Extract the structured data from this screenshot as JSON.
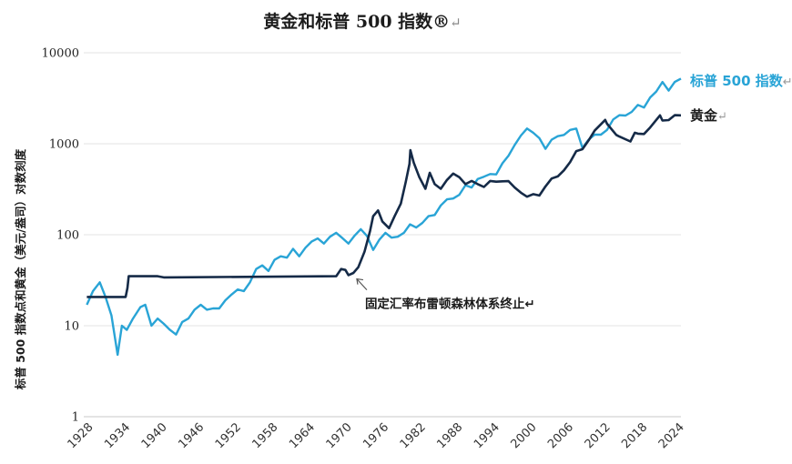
{
  "chart_data": {
    "type": "line",
    "title": "黄金和标普 500 指数®",
    "ylabel": "标普 500 指数点和黄金（美元/盎司）对数刻度",
    "y_scale": "log",
    "ylim": [
      1,
      10000
    ],
    "xlim": [
      1927,
      2024
    ],
    "y_ticks": [
      {
        "value": 1,
        "label": "1"
      },
      {
        "value": 10,
        "label": "10"
      },
      {
        "value": 100,
        "label": "100"
      },
      {
        "value": 1000,
        "label": "1000"
      },
      {
        "value": 10000,
        "label": "10000"
      }
    ],
    "x_ticks": [
      {
        "value": 1928,
        "label": "1928"
      },
      {
        "value": 1934,
        "label": "1934"
      },
      {
        "value": 1940,
        "label": "1940"
      },
      {
        "value": 1946,
        "label": "1946"
      },
      {
        "value": 1952,
        "label": "1952"
      },
      {
        "value": 1958,
        "label": "1958"
      },
      {
        "value": 1964,
        "label": "1964"
      },
      {
        "value": 1970,
        "label": "1970"
      },
      {
        "value": 1976,
        "label": "1976"
      },
      {
        "value": 1982,
        "label": "1982"
      },
      {
        "value": 1988,
        "label": "1988"
      },
      {
        "value": 1994,
        "label": "1994"
      },
      {
        "value": 2000,
        "label": "2000"
      },
      {
        "value": 2006,
        "label": "2006"
      },
      {
        "value": 2012,
        "label": "2012"
      },
      {
        "value": 2018,
        "label": "2018"
      },
      {
        "value": 2024,
        "label": "2024"
      }
    ],
    "grid": true,
    "series": [
      {
        "name": "标普 500 指数",
        "color": "#29a4d6",
        "points": [
          [
            1927.5,
            17
          ],
          [
            1928.5,
            24
          ],
          [
            1929.6,
            30
          ],
          [
            1930.5,
            21
          ],
          [
            1931.5,
            13
          ],
          [
            1932.5,
            4.8
          ],
          [
            1933.2,
            10
          ],
          [
            1934,
            9
          ],
          [
            1935,
            12
          ],
          [
            1936.2,
            16
          ],
          [
            1937,
            17
          ],
          [
            1938,
            10
          ],
          [
            1939,
            12
          ],
          [
            1940,
            10.5
          ],
          [
            1941,
            9
          ],
          [
            1942,
            8
          ],
          [
            1943,
            11
          ],
          [
            1944,
            12
          ],
          [
            1945,
            15
          ],
          [
            1946,
            17
          ],
          [
            1947,
            15
          ],
          [
            1948,
            15.5
          ],
          [
            1949,
            15.5
          ],
          [
            1950,
            19
          ],
          [
            1951,
            22
          ],
          [
            1952,
            25
          ],
          [
            1953,
            24
          ],
          [
            1954,
            30
          ],
          [
            1955,
            42
          ],
          [
            1956,
            46
          ],
          [
            1957,
            40
          ],
          [
            1958,
            53
          ],
          [
            1959,
            58
          ],
          [
            1960,
            56
          ],
          [
            1961,
            70
          ],
          [
            1962,
            58
          ],
          [
            1963,
            72
          ],
          [
            1964,
            84
          ],
          [
            1965,
            91
          ],
          [
            1966,
            80
          ],
          [
            1967,
            95
          ],
          [
            1968,
            105
          ],
          [
            1969,
            92
          ],
          [
            1970,
            80
          ],
          [
            1971,
            98
          ],
          [
            1972,
            115
          ],
          [
            1973,
            97
          ],
          [
            1974,
            68
          ],
          [
            1975,
            88
          ],
          [
            1976,
            105
          ],
          [
            1977,
            93
          ],
          [
            1978,
            95
          ],
          [
            1979,
            105
          ],
          [
            1980,
            130
          ],
          [
            1981,
            120
          ],
          [
            1982,
            135
          ],
          [
            1983,
            160
          ],
          [
            1984,
            165
          ],
          [
            1985,
            210
          ],
          [
            1986,
            245
          ],
          [
            1987,
            250
          ],
          [
            1988,
            275
          ],
          [
            1989,
            350
          ],
          [
            1990,
            330
          ],
          [
            1991,
            410
          ],
          [
            1992,
            435
          ],
          [
            1993,
            465
          ],
          [
            1994,
            460
          ],
          [
            1995,
            610
          ],
          [
            1996,
            740
          ],
          [
            1997,
            970
          ],
          [
            1998,
            1230
          ],
          [
            1999,
            1470
          ],
          [
            2000,
            1320
          ],
          [
            2001,
            1150
          ],
          [
            2002,
            880
          ],
          [
            2003,
            1110
          ],
          [
            2004,
            1210
          ],
          [
            2005,
            1250
          ],
          [
            2006,
            1420
          ],
          [
            2007,
            1470
          ],
          [
            2008,
            900
          ],
          [
            2009,
            1110
          ],
          [
            2010,
            1260
          ],
          [
            2011,
            1260
          ],
          [
            2012,
            1420
          ],
          [
            2013,
            1850
          ],
          [
            2014,
            2060
          ],
          [
            2015,
            2040
          ],
          [
            2016,
            2240
          ],
          [
            2017,
            2670
          ],
          [
            2018,
            2500
          ],
          [
            2019,
            3230
          ],
          [
            2020,
            3750
          ],
          [
            2021,
            4770
          ],
          [
            2022,
            3840
          ],
          [
            2023,
            4770
          ],
          [
            2024,
            5200
          ]
        ]
      },
      {
        "name": "黄金",
        "color": "#152a47",
        "points": [
          [
            1927.5,
            20.7
          ],
          [
            1933.8,
            20.7
          ],
          [
            1934.1,
            26
          ],
          [
            1934.3,
            35
          ],
          [
            1939,
            35
          ],
          [
            1940,
            34
          ],
          [
            1968,
            35
          ],
          [
            1968.8,
            42
          ],
          [
            1969.5,
            41
          ],
          [
            1970,
            36
          ],
          [
            1970.8,
            38
          ],
          [
            1971.6,
            44
          ],
          [
            1972.6,
            65
          ],
          [
            1973.5,
            110
          ],
          [
            1974,
            160
          ],
          [
            1974.8,
            185
          ],
          [
            1975.5,
            140
          ],
          [
            1976.6,
            118
          ],
          [
            1977.5,
            160
          ],
          [
            1978.5,
            220
          ],
          [
            1979.3,
            380
          ],
          [
            1979.9,
            600
          ],
          [
            1980.05,
            850
          ],
          [
            1980.6,
            620
          ],
          [
            1981.5,
            430
          ],
          [
            1982.5,
            320
          ],
          [
            1983.2,
            480
          ],
          [
            1984,
            360
          ],
          [
            1985,
            320
          ],
          [
            1986,
            400
          ],
          [
            1987,
            470
          ],
          [
            1988,
            430
          ],
          [
            1989,
            360
          ],
          [
            1990,
            390
          ],
          [
            1991,
            360
          ],
          [
            1992,
            335
          ],
          [
            1993,
            390
          ],
          [
            1994,
            383
          ],
          [
            1995,
            386
          ],
          [
            1996,
            388
          ],
          [
            1997,
            330
          ],
          [
            1998,
            290
          ],
          [
            1999,
            262
          ],
          [
            2000,
            279
          ],
          [
            2001,
            270
          ],
          [
            2002,
            340
          ],
          [
            2003,
            415
          ],
          [
            2004,
            438
          ],
          [
            2005,
            510
          ],
          [
            2006,
            630
          ],
          [
            2007,
            830
          ],
          [
            2008,
            870
          ],
          [
            2009,
            1090
          ],
          [
            2010,
            1400
          ],
          [
            2011.7,
            1830
          ],
          [
            2012,
            1660
          ],
          [
            2013.5,
            1250
          ],
          [
            2014,
            1200
          ],
          [
            2015.8,
            1060
          ],
          [
            2016.5,
            1320
          ],
          [
            2017,
            1290
          ],
          [
            2018,
            1280
          ],
          [
            2019,
            1510
          ],
          [
            2020.6,
            2050
          ],
          [
            2021,
            1800
          ],
          [
            2022,
            1820
          ],
          [
            2023,
            2060
          ],
          [
            2024,
            2050
          ]
        ]
      }
    ],
    "series_labels": {
      "spx": "标普 500 指数",
      "spx_suffix": "↵",
      "gold": "黄金",
      "gold_suffix": "↵"
    },
    "annotation": {
      "text": "固定汇率布雷顿森林体系终止↵",
      "x": 1971.5,
      "y": 35
    },
    "title_suffix": "↵"
  }
}
